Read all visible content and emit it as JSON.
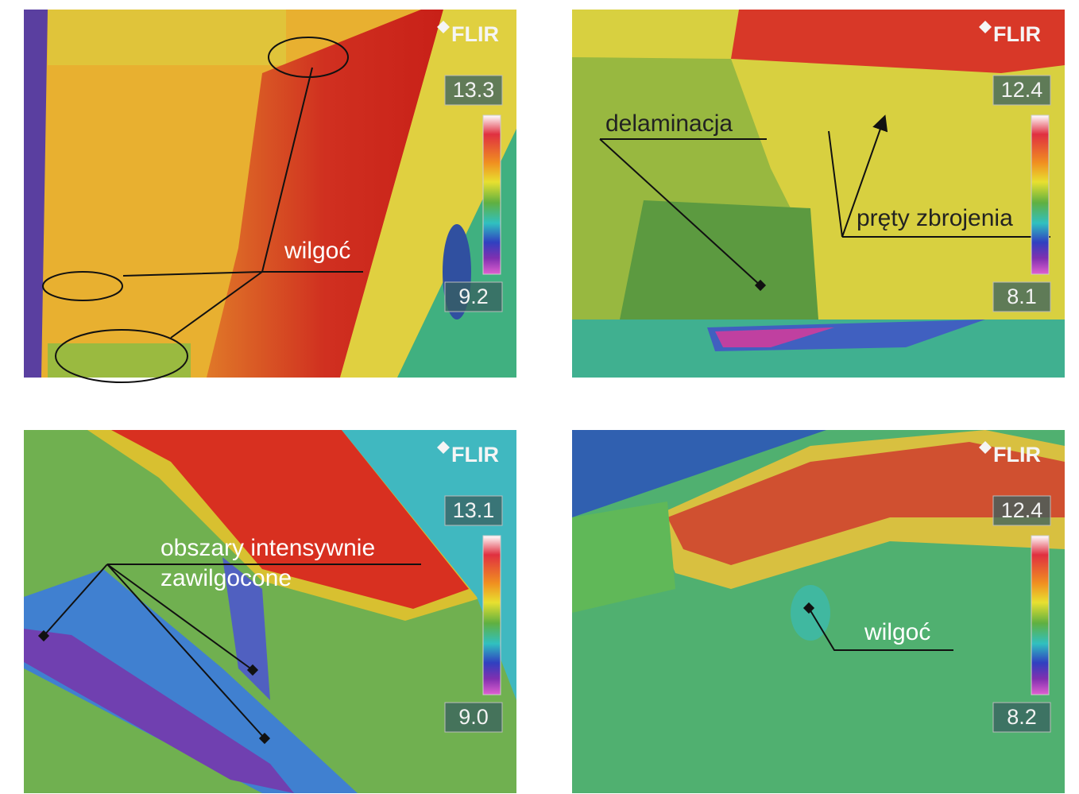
{
  "panels": [
    {
      "logo": "FLIR",
      "max": "13.3",
      "min": "9.2",
      "labels": [
        "wilgoć"
      ]
    },
    {
      "logo": "FLIR",
      "max": "12.4",
      "min": "8.1",
      "labels": [
        "delaminacja",
        "pręty zbrojenia"
      ]
    },
    {
      "logo": "FLIR",
      "max": "13.1",
      "min": "9.0",
      "labels": [
        "obszary intensywnie",
        "zawilgocone"
      ]
    },
    {
      "logo": "FLIR",
      "max": "12.4",
      "min": "8.2",
      "labels": [
        "wilgoć"
      ]
    }
  ]
}
